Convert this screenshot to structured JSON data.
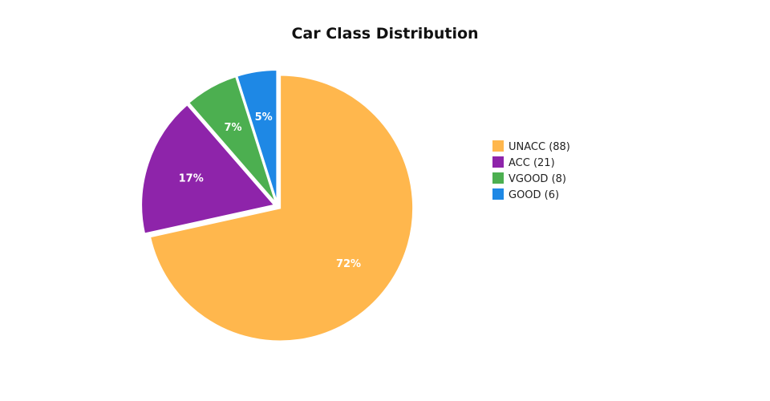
{
  "chart_data": {
    "type": "pie",
    "title": "Car Class Distribution",
    "legend_position": "right",
    "slices": [
      {
        "name": "UNACC",
        "count": 88,
        "legend_label": "UNACC (88)",
        "percent_label": "72%",
        "color": "#FFB74D"
      },
      {
        "name": "ACC",
        "count": 21,
        "legend_label": "ACC (21)",
        "percent_label": "17%",
        "color": "#8E24AA"
      },
      {
        "name": "VGOOD",
        "count": 8,
        "legend_label": "VGOOD (8)",
        "percent_label": "7%",
        "color": "#4CAF50"
      },
      {
        "name": "GOOD",
        "count": 6,
        "legend_label": "GOOD (6)",
        "percent_label": "5%",
        "color": "#1E88E5"
      }
    ]
  }
}
